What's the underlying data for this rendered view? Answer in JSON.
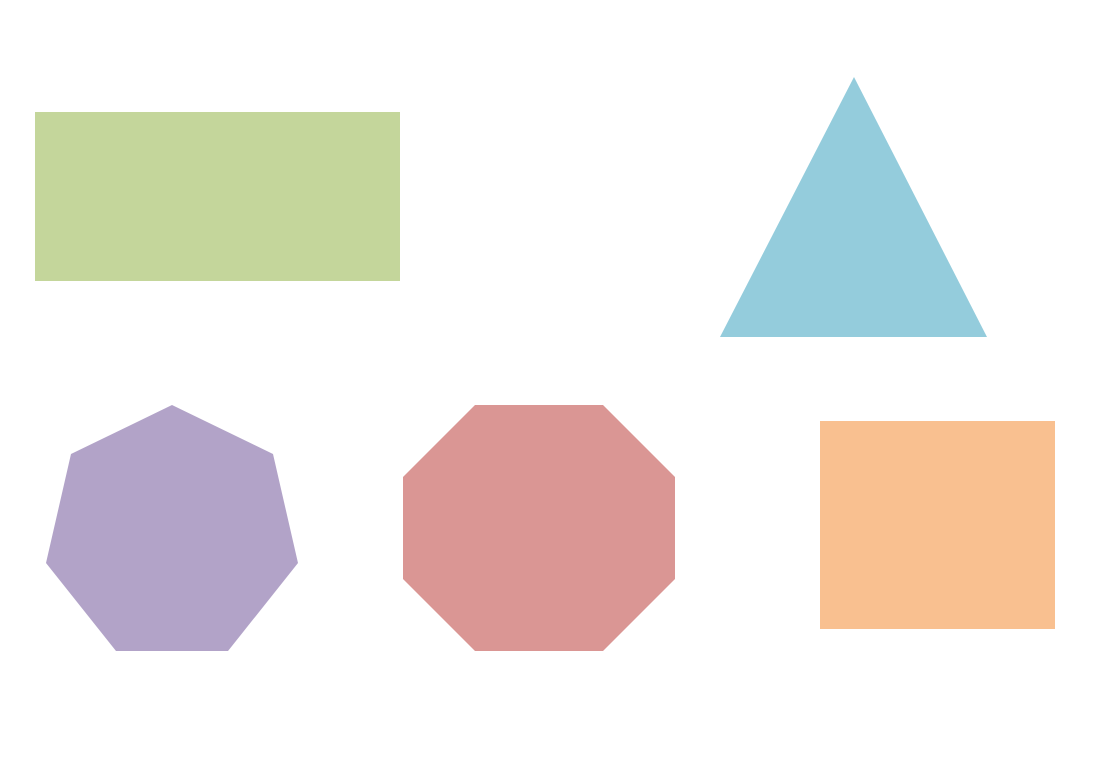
{
  "shapes": [
    {
      "id": "rectangle",
      "kind": "rectangle",
      "color": "#c4d69b"
    },
    {
      "id": "triangle",
      "kind": "triangle",
      "color": "#94ccdc"
    },
    {
      "id": "heptagon",
      "kind": "heptagon",
      "color": "#b2a3c8"
    },
    {
      "id": "octagon",
      "kind": "octagon",
      "color": "#da9694"
    },
    {
      "id": "square",
      "kind": "rectangle",
      "color": "#f9c090"
    }
  ]
}
